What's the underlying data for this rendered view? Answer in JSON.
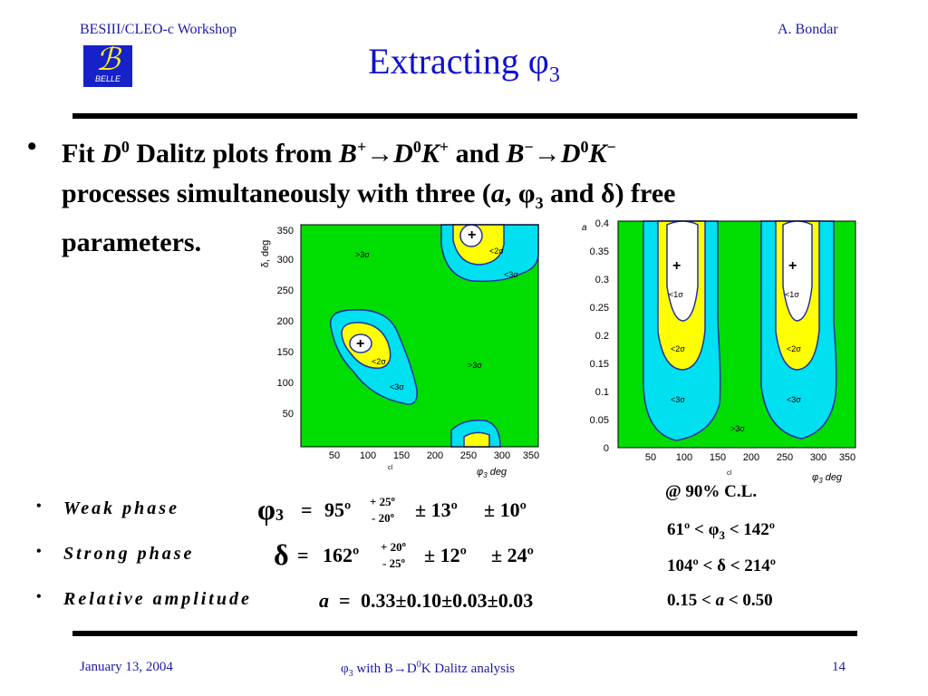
{
  "header": {
    "left": "BESIII/CLEO-c Workshop",
    "right": "A. Bondar",
    "logo_text": "BELLE",
    "logo_glyph": "ℬ"
  },
  "title": "Extracting φ",
  "title_sub": "3",
  "bullet": {
    "dot": "•",
    "parts": {
      "p1": "Fit ",
      "p2": "D",
      "p3": "0",
      "p4": " Dalitz plots from ",
      "p5": "B",
      "p6": "+",
      "p7": "→",
      "p8": "D",
      "p9": "0",
      "p10": "K",
      "p11": "+",
      "p12": " and ",
      "p13": "B",
      "p14": "−",
      "p15": "→",
      "p16": "D",
      "p17": "0",
      "p18": "K",
      "p19": "−",
      "p20": "processes simultaneously with three (",
      "p21": "a",
      "p22": ", φ",
      "p23": "3",
      "p24": " and δ) free",
      "p25": "parameters."
    }
  },
  "plot_left": {
    "ylabel": "δ, deg",
    "xlabel": "φ",
    "xlabel_sub": "3",
    "xlabel_unit": " deg",
    "corner": "cl",
    "yticks": [
      "50",
      "100",
      "150",
      "200",
      "250",
      "300",
      "350"
    ],
    "xticks": [
      "50",
      "100",
      "150",
      "200",
      "250",
      "300",
      "350"
    ],
    "labels": {
      "s1a": ">3σ",
      "s1b": "<2σ",
      "s1c": "<3σ",
      "s2a": "<2σ",
      "s2b": "<3σ",
      "s3": ">3σ"
    },
    "plus": "+"
  },
  "plot_right": {
    "ylabel": "a",
    "xlabel": "φ",
    "xlabel_sub": "3",
    "xlabel_unit": " deg",
    "corner": "cl",
    "yticks": [
      "0",
      "0.05",
      "0.1",
      "0.15",
      "0.2",
      "0.25",
      "0.3",
      "0.35",
      "0.4"
    ],
    "xticks": [
      "50",
      "100",
      "150",
      "200",
      "250",
      "300",
      "350"
    ],
    "labels": {
      "a1": "<1σ",
      "a2": "<2σ",
      "a3": "<3σ",
      "b1": "<1σ",
      "b2": "<2σ",
      "b3": "<3σ",
      "c": ">3σ"
    },
    "plus": "+"
  },
  "results": {
    "dot": "•",
    "weak": {
      "label": "Weak phase",
      "sym": "φ",
      "sub": "3",
      "eq": "=",
      "val": "95º",
      "up": "+ 25º",
      "dn": "-  20º",
      "err1": "± 13º",
      "err2": "± 10º"
    },
    "strong": {
      "label": "Strong phase",
      "sym": "δ",
      "eq": "=",
      "val": "162º",
      "up": "+ 20º",
      "dn": "-  25º",
      "err1": "± 12º",
      "err2": "± 24º"
    },
    "amp": {
      "label": "Relative amplitude",
      "sym": "a",
      "eq": "=",
      "val": "0.33±0.10±0.03±0.03"
    }
  },
  "ranges": {
    "cl": "@ 90% C.L.",
    "r1a": "61º <",
    "r1b": "φ",
    "r1c": "3",
    "r1d": " < 142º",
    "r2a": "104º <",
    "r2b": "δ",
    "r2c": " < 214º",
    "r3a": "0.15 <",
    "r3b": " a ",
    "r3c": "< 0.50"
  },
  "footer": {
    "left": "January 13, 2004",
    "center_a": "φ",
    "center_sub": "3",
    "center_b": " with B→D",
    "center_sup": "0",
    "center_c": "K Dalitz analysis",
    "right": "14"
  },
  "colors": {
    "green": "#00dd00",
    "cyan": "#00e0f0",
    "yellow": "#ffff00",
    "text_blue": "#1010d0",
    "contour": "#2030a0"
  }
}
